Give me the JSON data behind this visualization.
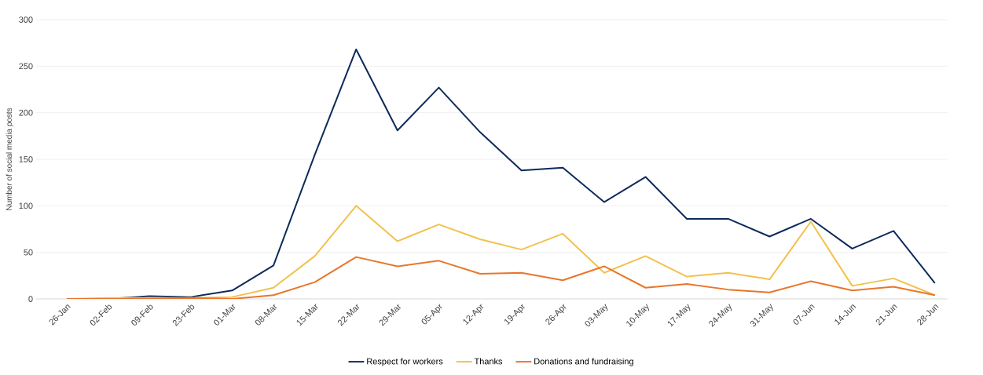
{
  "chart_data": {
    "type": "line",
    "ylabel": "Number of social media posts",
    "categories": [
      "26-Jan",
      "02-Feb",
      "09-Feb",
      "23-Feb",
      "01-Mar",
      "08-Mar",
      "15-Mar",
      "22-Mar",
      "29-Mar",
      "05-Apr",
      "12-Apr",
      "19-Apr",
      "26-Apr",
      "03-May",
      "10-May",
      "17-May",
      "24-May",
      "31-May",
      "07-Jun",
      "14-Jun",
      "21-Jun",
      "28-Jun"
    ],
    "series": [
      {
        "name": "Respect for workers",
        "color": "#0e2a5a",
        "values": [
          0,
          0,
          3,
          2,
          9,
          36,
          155,
          268,
          181,
          227,
          179,
          138,
          141,
          104,
          131,
          86,
          86,
          67,
          86,
          54,
          73,
          17
        ]
      },
      {
        "name": "Thanks",
        "color": "#f2c14e",
        "values": [
          0,
          1,
          1,
          1,
          2,
          12,
          46,
          100,
          62,
          80,
          64,
          53,
          70,
          28,
          46,
          24,
          28,
          21,
          83,
          14,
          22,
          4
        ]
      },
      {
        "name": "Donations and fundraising",
        "color": "#e8762b",
        "values": [
          0,
          0,
          0,
          1,
          0,
          4,
          18,
          45,
          35,
          41,
          27,
          28,
          20,
          35,
          12,
          16,
          10,
          7,
          19,
          9,
          13,
          4
        ]
      }
    ],
    "ylim": [
      0,
      300
    ],
    "yticks": [
      0,
      50,
      100,
      150,
      200,
      250,
      300
    ],
    "grid": "y",
    "legend": "bottom",
    "marker": "none",
    "line_style": "solid"
  }
}
